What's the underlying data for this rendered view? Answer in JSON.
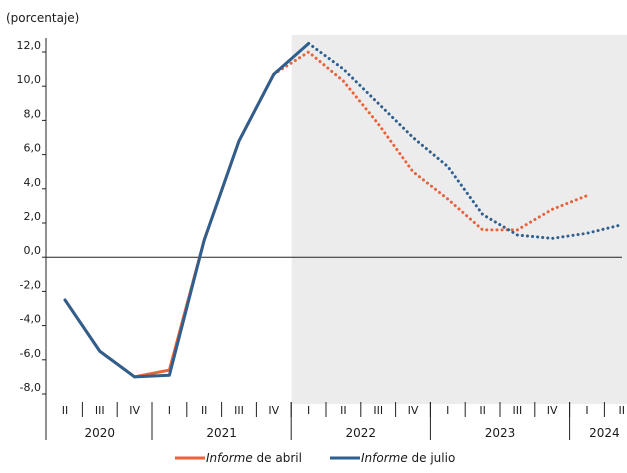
{
  "chart_data": {
    "type": "line",
    "unit_label": "(porcentaje)",
    "ylim": [
      -8.0,
      12.0
    ],
    "y_ticks": [
      -8.0,
      -6.0,
      -4.0,
      -2.0,
      0.0,
      2.0,
      4.0,
      6.0,
      8.0,
      10.0,
      12.0
    ],
    "y_tick_labels": [
      "-8,0",
      "-6,0",
      "-4,0",
      "-2,0",
      "0,0",
      "2,0",
      "4,0",
      "6,0",
      "8,0",
      "10,0",
      "12,0"
    ],
    "quarters": [
      "2020-II",
      "2020-III",
      "2020-IV",
      "2021-I",
      "2021-II",
      "2021-III",
      "2021-IV",
      "2022-I",
      "2022-II",
      "2022-III",
      "2022-IV",
      "2023-I",
      "2023-II",
      "2023-III",
      "2023-IV",
      "2024-I",
      "2024-II"
    ],
    "quarter_labels": [
      "II",
      "III",
      "IV",
      "I",
      "II",
      "III",
      "IV",
      "I",
      "II",
      "III",
      "IV",
      "I",
      "II",
      "III",
      "IV",
      "I",
      "II"
    ],
    "year_labels": [
      "2020",
      "2021",
      "2022",
      "2023",
      "2024"
    ],
    "forecast_shading_start": "2022-I",
    "grid": false,
    "legend_position": "bottom-center",
    "series": [
      {
        "name_part1": "Informe",
        "name_part2": " de abril",
        "color": "#e8623a",
        "solid": [
          -2.5,
          -5.5,
          -7.0,
          -6.6,
          1.0,
          6.8,
          10.7
        ],
        "dotted_from": "2021-IV",
        "dotted": [
          10.7,
          12.0,
          10.3,
          7.8,
          5.0,
          3.4,
          1.6,
          1.6,
          2.8,
          3.6
        ]
      },
      {
        "name_part1": "Informe",
        "name_part2": " de julio",
        "color": "#2f5f8e",
        "solid": [
          -2.5,
          -5.5,
          -7.0,
          -6.9,
          1.0,
          6.8,
          10.7,
          12.5
        ],
        "dotted_from": "2022-I",
        "dotted": [
          12.5,
          11.0,
          9.0,
          7.0,
          5.3,
          2.5,
          1.3,
          1.1,
          1.4,
          1.9
        ]
      }
    ]
  }
}
